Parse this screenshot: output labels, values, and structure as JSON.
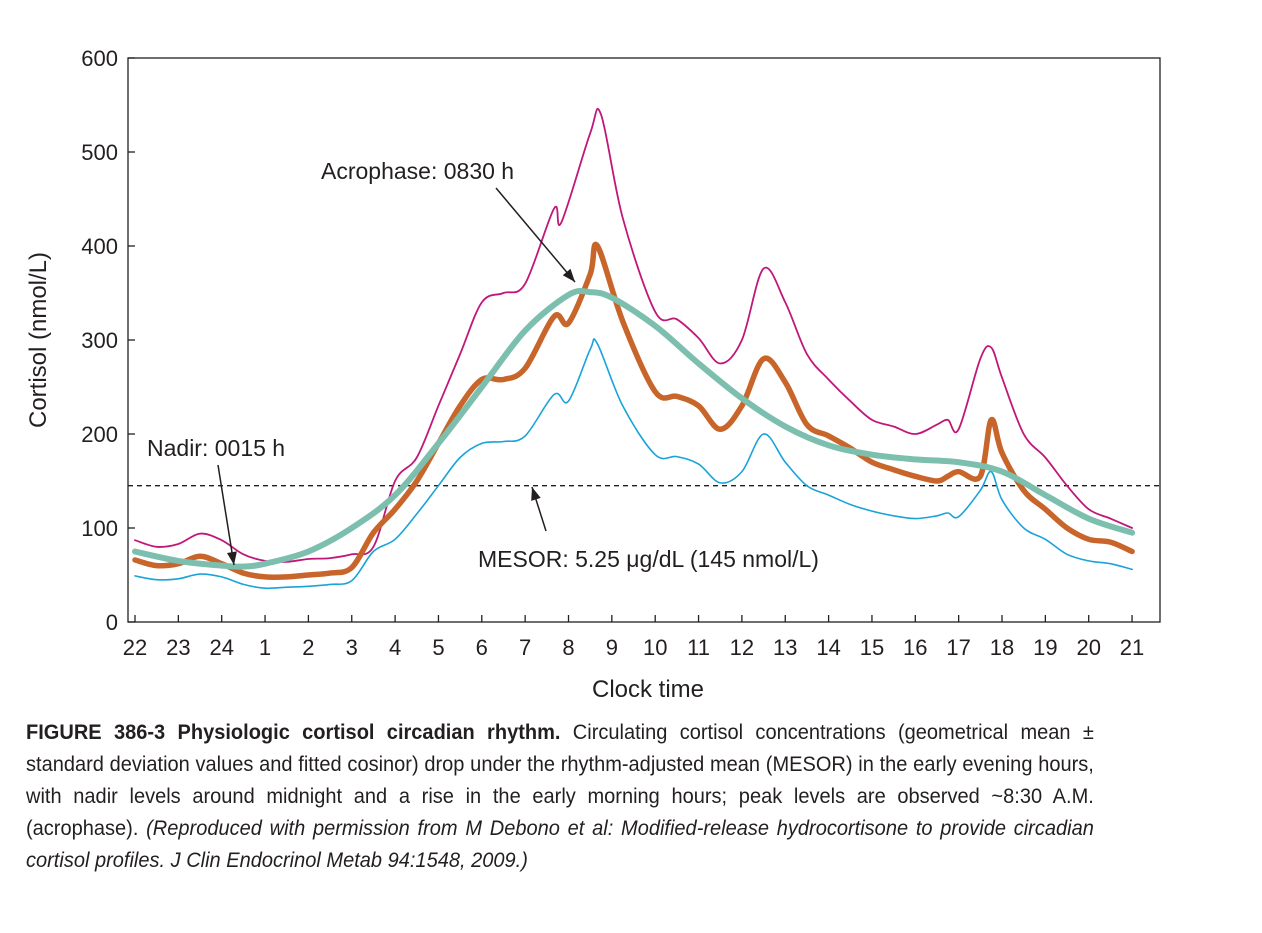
{
  "chart_data": {
    "type": "line",
    "title": "",
    "xlabel": "Clock time",
    "ylabel": "Cortisol (nmol/L)",
    "ylim": [
      0,
      600
    ],
    "y_ticks": [
      0,
      100,
      200,
      300,
      400,
      500,
      600
    ],
    "x_tick_labels": [
      "22",
      "23",
      "24",
      "1",
      "2",
      "3",
      "4",
      "5",
      "6",
      "7",
      "8",
      "9",
      "10",
      "11",
      "12",
      "13",
      "14",
      "15",
      "16",
      "17",
      "18",
      "19",
      "20",
      "21"
    ],
    "grid": false,
    "reference_line": {
      "value": 145,
      "style": "dashed"
    },
    "series": [
      {
        "color": "#c0177a",
        "x": [
          "22:00",
          "22:30",
          "23:00",
          "23:30",
          "24:00",
          "00:30",
          "01:00",
          "01:30",
          "02:00",
          "02:30",
          "03:00",
          "03:30",
          "04:00",
          "04:30",
          "05:00",
          "05:30",
          "06:00",
          "06:30",
          "07:00",
          "07:40",
          "07:50",
          "08:30",
          "08:45",
          "09:15",
          "10:00",
          "10:30",
          "11:00",
          "11:30",
          "12:00",
          "12:30",
          "13:00",
          "13:30",
          "14:00",
          "14:30",
          "15:00",
          "15:30",
          "16:00",
          "16:30",
          "16:45",
          "17:00",
          "17:30",
          "17:45",
          "18:00",
          "18:30",
          "19:00",
          "19:30",
          "20:00",
          "20:30",
          "21:00",
          "21:40"
        ],
        "values": [
          87,
          80,
          83,
          94,
          87,
          72,
          65,
          64,
          67,
          68,
          72,
          80,
          150,
          175,
          230,
          285,
          340,
          350,
          360,
          440,
          425,
          520,
          540,
          430,
          330,
          322,
          302,
          275,
          300,
          376,
          340,
          285,
          258,
          235,
          215,
          208,
          200,
          210,
          215,
          205,
          280,
          292,
          260,
          200,
          175,
          145,
          120,
          110,
          100,
          90
        ]
      },
      {
        "color": "#c8652a",
        "x": [
          "22:00",
          "22:30",
          "23:00",
          "23:30",
          "24:00",
          "00:30",
          "01:00",
          "01:30",
          "02:00",
          "02:30",
          "03:00",
          "03:30",
          "04:00",
          "04:30",
          "05:00",
          "05:30",
          "06:00",
          "06:30",
          "07:00",
          "07:40",
          "08:00",
          "08:30",
          "08:40",
          "09:15",
          "10:00",
          "10:30",
          "11:00",
          "11:30",
          "12:00",
          "12:30",
          "13:00",
          "13:30",
          "14:00",
          "14:30",
          "15:00",
          "15:30",
          "16:00",
          "16:30",
          "16:45",
          "17:00",
          "17:30",
          "17:45",
          "18:00",
          "18:30",
          "19:00",
          "19:30",
          "20:00",
          "20:30",
          "21:00",
          "21:40"
        ],
        "values": [
          66,
          60,
          62,
          70,
          62,
          52,
          48,
          48,
          50,
          52,
          58,
          95,
          120,
          150,
          190,
          230,
          258,
          258,
          270,
          325,
          318,
          370,
          400,
          320,
          245,
          240,
          230,
          205,
          230,
          280,
          255,
          210,
          198,
          185,
          170,
          162,
          155,
          150,
          155,
          160,
          155,
          215,
          180,
          140,
          120,
          100,
          88,
          85,
          75,
          70
        ]
      },
      {
        "color": "#1aa3d9",
        "x": [
          "22:00",
          "22:30",
          "23:00",
          "23:30",
          "24:00",
          "00:30",
          "01:00",
          "01:30",
          "02:00",
          "02:30",
          "03:00",
          "03:30",
          "04:00",
          "04:30",
          "05:00",
          "05:30",
          "06:00",
          "06:30",
          "07:00",
          "07:40",
          "08:00",
          "08:30",
          "08:40",
          "09:15",
          "10:00",
          "10:30",
          "11:00",
          "11:30",
          "12:00",
          "12:30",
          "13:00",
          "13:30",
          "14:00",
          "14:30",
          "15:00",
          "15:30",
          "16:00",
          "16:30",
          "16:45",
          "17:00",
          "17:30",
          "17:45",
          "18:00",
          "18:30",
          "19:00",
          "19:30",
          "20:00",
          "20:30",
          "21:00",
          "21:40"
        ],
        "values": [
          49,
          45,
          46,
          51,
          48,
          40,
          36,
          37,
          38,
          40,
          44,
          75,
          88,
          115,
          145,
          175,
          190,
          192,
          198,
          242,
          235,
          290,
          296,
          230,
          178,
          176,
          168,
          148,
          160,
          200,
          170,
          145,
          135,
          125,
          118,
          113,
          110,
          113,
          116,
          112,
          140,
          160,
          130,
          100,
          88,
          72,
          65,
          62,
          56,
          52
        ]
      },
      {
        "color": "#7dbfae",
        "x": [
          "22:00",
          "23:00",
          "24:00",
          "00:30",
          "01:00",
          "02:00",
          "03:00",
          "04:00",
          "05:00",
          "06:00",
          "07:00",
          "08:00",
          "08:30",
          "09:00",
          "10:00",
          "11:00",
          "12:00",
          "13:00",
          "14:00",
          "15:00",
          "16:00",
          "17:00",
          "18:00",
          "19:00",
          "20:00",
          "21:00",
          "21:40"
        ],
        "values": [
          75,
          65,
          60,
          59,
          62,
          75,
          100,
          135,
          190,
          250,
          310,
          348,
          351,
          345,
          315,
          275,
          238,
          208,
          188,
          178,
          173,
          170,
          160,
          135,
          110,
          95,
          85
        ]
      }
    ],
    "annotations": [
      {
        "text": "Acrophase: 0830 h"
      },
      {
        "text": "Nadir: 0015 h"
      },
      {
        "text": "MESOR: 5.25 μg/dL (145 nmol/L)"
      }
    ]
  },
  "caption": {
    "figure_label": "FIGURE 386-3 Physiologic cortisol circadian rhythm.",
    "body_text": " Circulating cortisol concentrations (geometrical mean ± standard deviation values and fitted cosinor) drop under the rhythm-adjusted mean (MESOR) in the early evening hours, with nadir levels around midnight and a rise in the early morning hours; peak levels are observed ~8:30 A.M. (acrophase). ",
    "citation": "(Reproduced with permission from M Debono et al: Modified-release hydrocortisone to provide circadian cortisol profiles. J Clin Endocrinol Metab 94:1548, 2009.)"
  }
}
